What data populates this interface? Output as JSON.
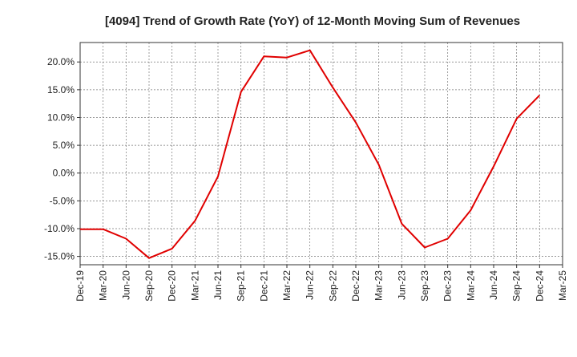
{
  "chart_data": {
    "type": "line",
    "title": "[4094]  Trend of Growth Rate (YoY) of 12-Month Moving Sum of Revenues",
    "xlabel": "",
    "ylabel": "",
    "categories": [
      "Dec-19",
      "Mar-20",
      "Jun-20",
      "Sep-20",
      "Dec-20",
      "Mar-21",
      "Jun-21",
      "Sep-21",
      "Dec-21",
      "Mar-22",
      "Jun-22",
      "Sep-22",
      "Dec-22",
      "Mar-23",
      "Jun-23",
      "Sep-23",
      "Dec-23",
      "Mar-24",
      "Jun-24",
      "Sep-24",
      "Dec-24",
      "Mar-25"
    ],
    "series": [
      {
        "color": "#e00000",
        "values": [
          -10.1,
          -10.1,
          -11.8,
          -15.3,
          -13.6,
          -8.6,
          -0.6,
          14.6,
          21.0,
          20.8,
          22.1,
          15.4,
          9.1,
          1.5,
          -9.1,
          -13.4,
          -11.8,
          -6.7,
          1.2,
          9.8,
          14.0,
          null
        ]
      }
    ],
    "yticks": [
      "20.0%",
      "15.0%",
      "10.0%",
      "5.0%",
      "0.0%",
      "-5.0%",
      "-10.0%",
      "-15.0%"
    ],
    "ytick_values": [
      20,
      15,
      10,
      5,
      0,
      -5,
      -10,
      -15
    ],
    "ylim": [
      -16.5,
      23.5
    ],
    "grid": true,
    "legend": "none"
  }
}
